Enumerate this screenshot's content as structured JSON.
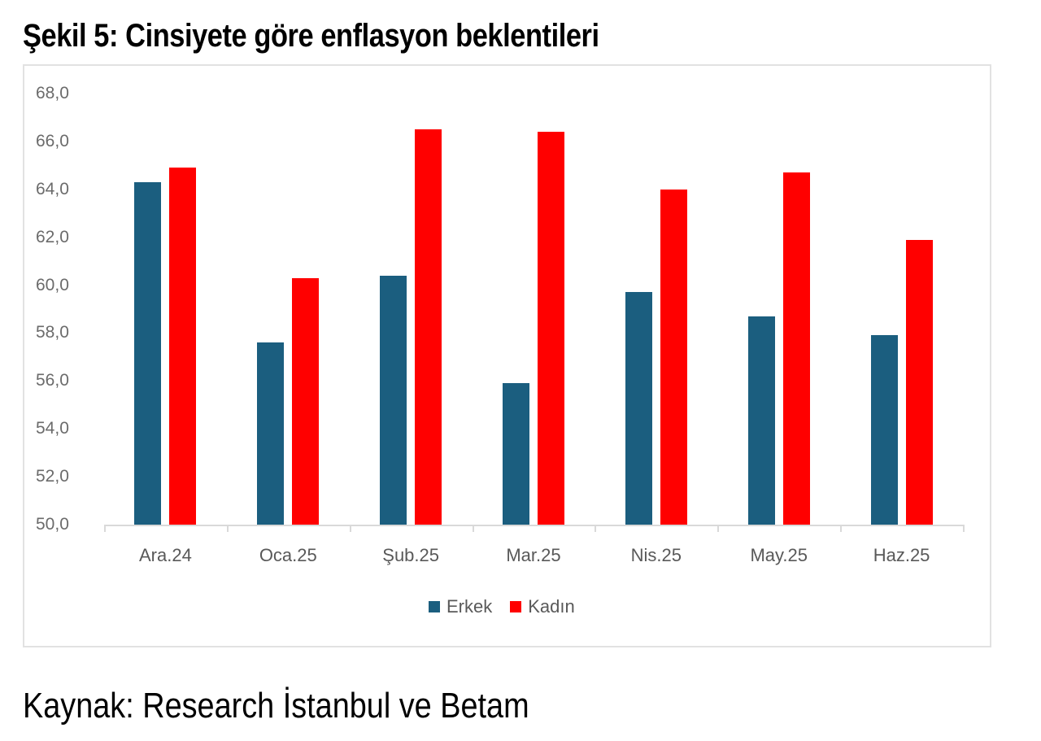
{
  "title": "Şekil 5: Cinsiyete göre enflasyon beklentileri",
  "source": "Kaynak: Research İstanbul ve Betam",
  "y_ticks": [
    "68,0",
    "66,0",
    "64,0",
    "62,0",
    "60,0",
    "58,0",
    "56,0",
    "54,0",
    "52,0",
    "50,0"
  ],
  "legend": [
    {
      "label": "Erkek",
      "color": "#1b5e7f"
    },
    {
      "label": "Kadın",
      "color": "#ff0000"
    }
  ],
  "chart_data": {
    "type": "bar",
    "title": "Şekil 5: Cinsiyete göre enflasyon beklentileri",
    "xlabel": "",
    "ylabel": "",
    "categories": [
      "Ara.24",
      "Oca.25",
      "Şub.25",
      "Mar.25",
      "Nis.25",
      "May.25",
      "Haz.25"
    ],
    "series": [
      {
        "name": "Erkek",
        "color": "#1b5e7f",
        "values": [
          64.3,
          57.6,
          60.4,
          55.9,
          59.7,
          58.7,
          57.9
        ]
      },
      {
        "name": "Kadın",
        "color": "#ff0000",
        "values": [
          64.9,
          60.3,
          66.5,
          66.4,
          64.0,
          64.7,
          61.9
        ]
      }
    ],
    "ylim": [
      50,
      68
    ],
    "y_tick_step": 2,
    "grid": false,
    "legend_position": "bottom",
    "source": "Kaynak: Research İstanbul ve Betam"
  }
}
